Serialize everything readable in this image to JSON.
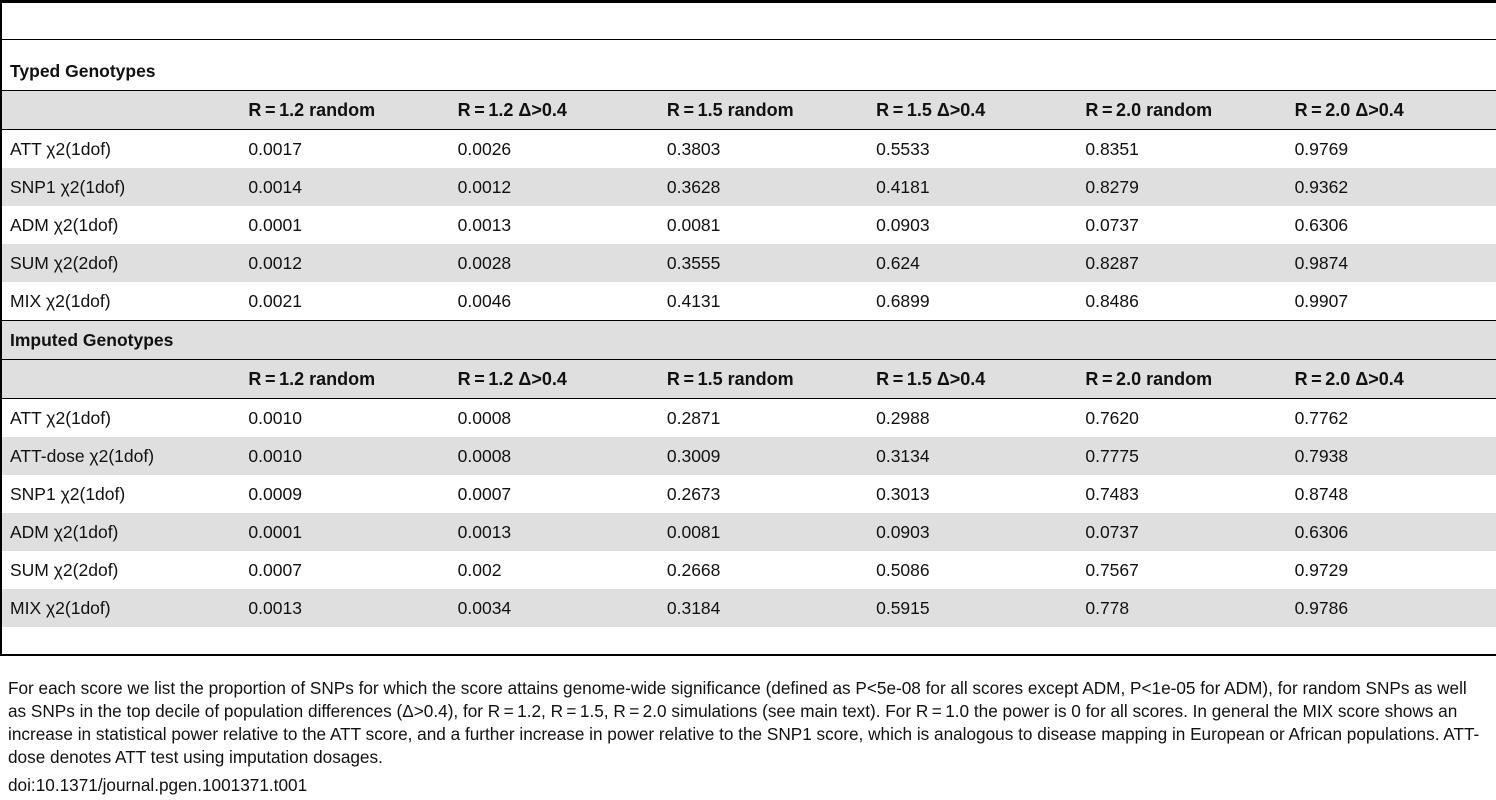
{
  "sections": [
    {
      "title": "Typed Genotypes",
      "headers": [
        "",
        "R = 1.2 random",
        "R = 1.2 Δ>0.4",
        "R = 1.5 random",
        "R = 1.5 Δ>0.4",
        "R = 2.0 random",
        "R = 2.0 Δ>0.4"
      ],
      "rows": [
        [
          "ATT χ2(1dof)",
          "0.0017",
          "0.0026",
          "0.3803",
          "0.5533",
          "0.8351",
          "0.9769"
        ],
        [
          "SNP1 χ2(1dof)",
          "0.0014",
          "0.0012",
          "0.3628",
          "0.4181",
          "0.8279",
          "0.9362"
        ],
        [
          "ADM χ2(1dof)",
          "0.0001",
          "0.0013",
          "0.0081",
          "0.0903",
          "0.0737",
          "0.6306"
        ],
        [
          "SUM χ2(2dof)",
          "0.0012",
          "0.0028",
          "0.3555",
          "0.624",
          "0.8287",
          "0.9874"
        ],
        [
          "MIX χ2(1dof)",
          "0.0021",
          "0.0046",
          "0.4131",
          "0.6899",
          "0.8486",
          "0.9907"
        ]
      ]
    },
    {
      "title": "Imputed Genotypes",
      "headers": [
        "",
        "R = 1.2 random",
        "R = 1.2 Δ>0.4",
        "R = 1.5 random",
        "R = 1.5 Δ>0.4",
        "R = 2.0 random",
        "R = 2.0 Δ>0.4"
      ],
      "rows": [
        [
          "ATT χ2(1dof)",
          "0.0010",
          "0.0008",
          "0.2871",
          "0.2988",
          "0.7620",
          "0.7762"
        ],
        [
          "ATT-dose χ2(1dof)",
          "0.0010",
          "0.0008",
          "0.3009",
          "0.3134",
          "0.7775",
          "0.7938"
        ],
        [
          "SNP1 χ2(1dof)",
          "0.0009",
          "0.0007",
          "0.2673",
          "0.3013",
          "0.7483",
          "0.8748"
        ],
        [
          "ADM χ2(1dof)",
          "0.0001",
          "0.0013",
          "0.0081",
          "0.0903",
          "0.0737",
          "0.6306"
        ],
        [
          "SUM χ2(2dof)",
          "0.0007",
          "0.002",
          "0.2668",
          "0.5086",
          "0.7567",
          "0.9729"
        ],
        [
          "MIX χ2(1dof)",
          "0.0013",
          "0.0034",
          "0.3184",
          "0.5915",
          "0.778",
          "0.9786"
        ]
      ]
    }
  ],
  "caption": "For each score we list the proportion of SNPs for which the score attains genome-wide significance (defined as P<5e-08 for all scores except ADM, P<1e-05 for ADM), for random SNPs as well as SNPs in the top decile of population differences (Δ>0.4), for R = 1.2, R = 1.5, R = 2.0 simulations (see main text). For R = 1.0 the power is 0 for all scores. In general the MIX score shows an increase in statistical power relative to the ATT score, and a further increase in power relative to the SNP1 score, which is analogous to disease mapping in European or African populations. ATT-dose denotes ATT test using imputation dosages.",
  "doi": "doi:10.1371/journal.pgen.1001371.t001"
}
